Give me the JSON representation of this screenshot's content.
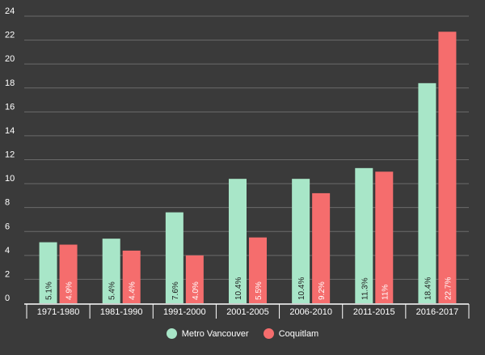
{
  "chart_data": {
    "type": "bar",
    "categories": [
      "1971-1980",
      "1981-1990",
      "1991-2000",
      "2001-2005",
      "2006-2010",
      "2011-2015",
      "2016-2017"
    ],
    "series": [
      {
        "name": "Metro Vancouver",
        "color": "#a8e6c8",
        "values": [
          5.1,
          5.4,
          7.6,
          10.4,
          10.4,
          11.3,
          18.4
        ],
        "labels": [
          "5.1%",
          "5.4%",
          "7.6%",
          "10.4%",
          "10.4%",
          "11.3%",
          "18.4%"
        ]
      },
      {
        "name": "Coquitlam",
        "color": "#f56d6d",
        "values": [
          4.9,
          4.4,
          4.0,
          5.5,
          9.2,
          11.0,
          22.7
        ],
        "labels": [
          "4.9%",
          "4.4%",
          "4.0%",
          "5.5%",
          "9.2%",
          "11%",
          "22.7%"
        ]
      }
    ],
    "ylim": [
      0,
      24
    ],
    "yticks": [
      "0",
      "2",
      "4",
      "6",
      "8",
      "10",
      "12",
      "14",
      "16",
      "18",
      "20",
      "22",
      "24"
    ],
    "grid": true,
    "legend_position": "bottom"
  }
}
